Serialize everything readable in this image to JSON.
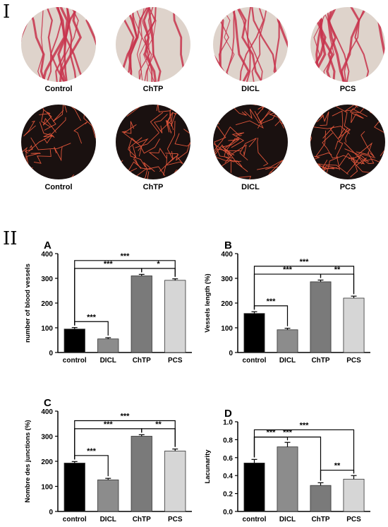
{
  "section_labels": {
    "first": "I",
    "second": "II"
  },
  "images": {
    "row1_labels": [
      "Control",
      "ChTP",
      "DICL",
      "PCS"
    ],
    "row2_labels": [
      "Control",
      "ChTP",
      "DICL",
      "PCS"
    ]
  },
  "colors": {
    "membrane": "#ded3cb",
    "vessel_red": "#c8324c",
    "segmented_bg": "#1a1110",
    "segmented_line": "#e0553a",
    "bar_control": "#000000",
    "bar_dicl": "#8c8c8c",
    "bar_chtp": "#7a7a7a",
    "bar_pcs": "#d6d6d6"
  },
  "chart_data": [
    {
      "type": "bar",
      "panel": "A",
      "categories": [
        "control",
        "DICL",
        "ChTP",
        "PCS"
      ],
      "values": [
        95,
        55,
        310,
        292
      ],
      "errors": [
        6,
        5,
        6,
        6
      ],
      "ylabel": "number of blood vessels",
      "ylim": [
        0,
        400
      ],
      "yticks": [
        0,
        100,
        200,
        300,
        400
      ],
      "brackets": [
        {
          "from": 0,
          "to": 1,
          "label": "***"
        },
        {
          "from": 0,
          "to": 2,
          "label": "***"
        },
        {
          "from": 2,
          "to": 3,
          "label": "*"
        },
        {
          "from": 0,
          "to": 3,
          "label": "***"
        }
      ]
    },
    {
      "type": "bar",
      "panel": "B",
      "categories": [
        "control",
        "DICL",
        "ChTP",
        "PCS"
      ],
      "values": [
        158,
        92,
        286,
        220
      ],
      "errors": [
        7,
        6,
        7,
        8
      ],
      "ylabel": "Vessels length (%)",
      "ylim": [
        0,
        400
      ],
      "yticks": [
        0,
        100,
        200,
        300,
        400
      ],
      "brackets": [
        {
          "from": 0,
          "to": 1,
          "label": "***"
        },
        {
          "from": 0,
          "to": 2,
          "label": "***"
        },
        {
          "from": 2,
          "to": 3,
          "label": "**"
        },
        {
          "from": 0,
          "to": 3,
          "label": "***"
        }
      ]
    },
    {
      "type": "bar",
      "panel": "C",
      "categories": [
        "control",
        "DICL",
        "ChTP",
        "PCS"
      ],
      "values": [
        193,
        126,
        300,
        241
      ],
      "errors": [
        6,
        6,
        6,
        8
      ],
      "ylabel": "Nombre des junctions (%)",
      "ylim": [
        0,
        400
      ],
      "yticks": [
        0,
        100,
        200,
        300,
        400
      ],
      "brackets": [
        {
          "from": 0,
          "to": 1,
          "label": "***"
        },
        {
          "from": 0,
          "to": 2,
          "label": "***"
        },
        {
          "from": 2,
          "to": 3,
          "label": "**"
        },
        {
          "from": 0,
          "to": 3,
          "label": "***"
        }
      ]
    },
    {
      "type": "bar",
      "panel": "D",
      "categories": [
        "control",
        "DICL",
        "ChTP",
        "PCS"
      ],
      "values": [
        0.54,
        0.72,
        0.29,
        0.36
      ],
      "errors": [
        0.04,
        0.05,
        0.03,
        0.04
      ],
      "ylabel": "Lacunarity",
      "ylim": [
        0,
        1.0
      ],
      "yticks": [
        0.0,
        0.2,
        0.4,
        0.6,
        0.8,
        1.0
      ],
      "brackets": [
        {
          "from": 0,
          "to": 1,
          "label": "***"
        },
        {
          "from": 0,
          "to": 2,
          "label": "***"
        },
        {
          "from": 2,
          "to": 3,
          "label": "**"
        },
        {
          "from": 0,
          "to": 3,
          "label": "***"
        }
      ]
    }
  ]
}
